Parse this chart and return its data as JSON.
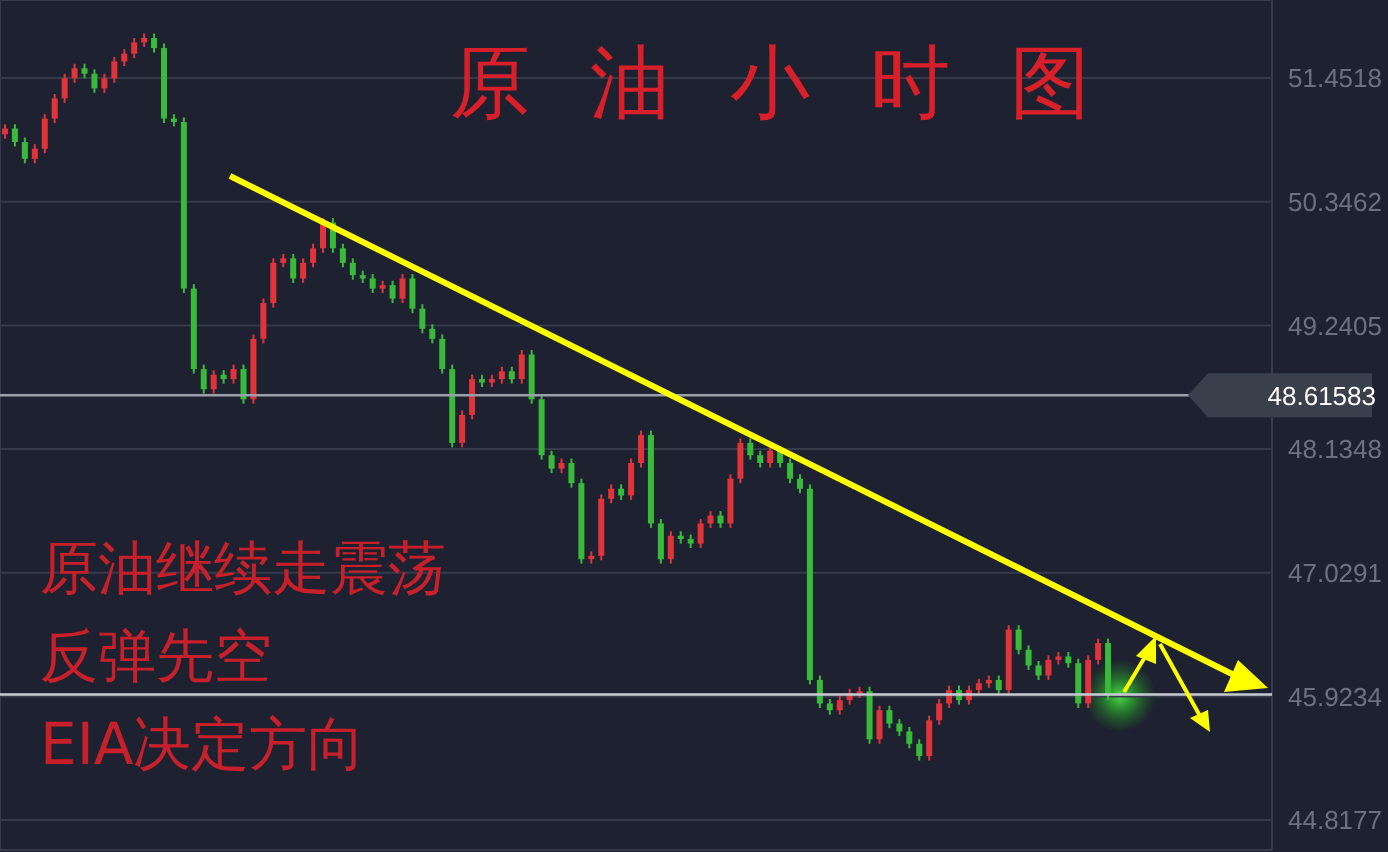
{
  "chart_data": {
    "type": "candlestick",
    "title": "原油小时图",
    "annotations": [
      "原油继续走震荡",
      "反弹先空",
      "EIA决定方向"
    ],
    "categories": [
      null,
      null,
      null,
      null,
      null,
      null,
      null,
      null,
      null,
      null,
      null,
      null,
      null,
      null,
      null,
      null,
      null,
      null,
      null,
      null,
      null,
      null,
      null,
      null,
      null,
      null,
      null,
      null,
      null,
      null,
      null,
      null,
      null,
      null,
      null,
      null,
      null,
      null,
      null,
      null,
      null,
      null,
      null,
      null,
      null,
      null,
      null,
      null,
      null,
      null,
      null,
      null,
      null,
      null,
      null,
      null,
      null,
      null,
      null,
      null,
      null,
      null,
      null,
      null,
      null,
      null,
      null,
      null,
      null,
      null,
      null,
      null,
      null,
      null,
      null,
      null,
      null,
      null,
      null,
      null,
      null,
      null,
      null,
      null,
      null,
      null,
      null,
      null,
      null,
      null,
      null,
      null,
      null,
      null,
      null,
      null,
      null,
      null,
      null,
      null,
      null,
      null,
      null,
      null,
      null,
      null,
      null,
      null,
      null,
      null,
      null,
      null,
      null,
      null,
      null,
      null,
      null,
      null,
      null,
      null,
      null,
      null,
      null,
      null,
      null,
      null,
      null,
      null
    ],
    "colors": [
      "#e0333a",
      "#3aba3a",
      "#3aba3a",
      "#e0333a",
      "#e0333a",
      "#e0333a",
      "#e0333a",
      "#e0333a",
      "#3aba3a",
      "#3aba3a",
      "#e0333a",
      "#e0333a",
      "#e0333a",
      "#e0333a",
      "#e0333a",
      "#3aba3a",
      "#3aba3a",
      "#3aba3a",
      "#3aba3a",
      "#3aba3a",
      "#3aba3a",
      "#e0333a",
      "#3aba3a",
      "#e0333a",
      "#3aba3a",
      "#e0333a",
      "#e0333a",
      "#e0333a",
      "#e0333a",
      "#3aba3a",
      "#e0333a",
      "#e0333a",
      "#e0333a",
      "#3aba3a",
      "#3aba3a",
      "#3aba3a",
      "#3aba3a",
      "#3aba3a",
      "#e0333a",
      "#3aba3a",
      "#e0333a",
      "#3aba3a",
      "#3aba3a",
      "#3aba3a",
      "#3aba3a",
      "#3aba3a",
      "#e0333a",
      "#e0333a",
      "#3aba3a",
      "#e0333a",
      "#e0333a",
      "#3aba3a",
      "#e0333a",
      "#3aba3a",
      "#3aba3a",
      "#3aba3a",
      "#e0333a",
      "#3aba3a",
      "#3aba3a",
      "#e0333a",
      "#e0333a",
      "#e0333a",
      "#3aba3a",
      "#e0333a",
      "#e0333a",
      "#3aba3a",
      "#3aba3a",
      "#e0333a",
      "#3aba3a",
      "#3aba3a",
      "#e0333a",
      "#e0333a",
      "#3aba3a",
      "#e0333a",
      "#e0333a",
      "#3aba3a",
      "#3aba3a",
      "#e0333a",
      "#3aba3a",
      "#3aba3a",
      "#3aba3a",
      "#3aba3a",
      "#3aba3a",
      "#3aba3a",
      "#e0333a",
      "#e0333a",
      "#e0333a",
      "#3aba3a",
      "#e0333a",
      "#3aba3a",
      "#3aba3a",
      "#3aba3a",
      "#3aba3a",
      "#e0333a",
      "#e0333a",
      "#e0333a",
      "#3aba3a",
      "#e0333a",
      "#e0333a",
      "#e0333a",
      "#3aba3a",
      "#e0333a",
      "#3aba3a",
      "#3aba3a",
      "#3aba3a",
      "#e0333a",
      "#e0333a",
      "#3aba3a",
      "#3aba3a",
      "#e0333a",
      "#e0333a",
      "#3aba3a",
      null,
      null,
      null,
      null,
      null,
      null,
      null,
      null,
      null,
      null,
      null,
      null,
      null,
      null,
      null,
      null
    ],
    "ohlc": [
      [
        50.95,
        51.04,
        50.91,
        51.0
      ],
      [
        51.0,
        51.04,
        50.84,
        50.88
      ],
      [
        50.88,
        50.92,
        50.69,
        50.73
      ],
      [
        50.73,
        50.86,
        50.69,
        50.82
      ],
      [
        50.82,
        51.13,
        50.78,
        51.09
      ],
      [
        51.09,
        51.31,
        51.05,
        51.27
      ],
      [
        51.27,
        51.49,
        51.23,
        51.45
      ],
      [
        51.45,
        51.58,
        51.41,
        51.54
      ],
      [
        51.54,
        51.58,
        51.45,
        51.49
      ],
      [
        51.49,
        51.53,
        51.32,
        51.36
      ],
      [
        51.36,
        51.49,
        51.32,
        51.45
      ],
      [
        51.45,
        51.64,
        51.41,
        51.6
      ],
      [
        51.6,
        51.71,
        51.56,
        51.67
      ],
      [
        51.67,
        51.81,
        51.63,
        51.77
      ],
      [
        51.77,
        51.85,
        51.73,
        51.81
      ],
      [
        51.81,
        51.85,
        51.68,
        51.72
      ],
      [
        51.72,
        51.76,
        51.05,
        51.09
      ],
      [
        51.09,
        51.13,
        51.02,
        51.06
      ],
      [
        51.06,
        51.1,
        49.53,
        49.57
      ],
      [
        49.57,
        49.61,
        48.81,
        48.85
      ],
      [
        48.85,
        48.89,
        48.63,
        48.67
      ],
      [
        48.67,
        48.84,
        48.63,
        48.8
      ],
      [
        48.8,
        48.84,
        48.72,
        48.76
      ],
      [
        48.76,
        48.89,
        48.72,
        48.85
      ],
      [
        48.85,
        48.89,
        48.54,
        48.58
      ],
      [
        48.58,
        49.16,
        48.54,
        49.12
      ],
      [
        49.12,
        49.48,
        49.08,
        49.44
      ],
      [
        49.44,
        49.84,
        49.4,
        49.8
      ],
      [
        49.8,
        49.88,
        49.76,
        49.84
      ],
      [
        49.84,
        49.88,
        49.62,
        49.66
      ],
      [
        49.66,
        49.84,
        49.62,
        49.8
      ],
      [
        49.8,
        49.97,
        49.76,
        49.93
      ],
      [
        49.93,
        50.2,
        49.89,
        50.16
      ],
      [
        50.16,
        50.2,
        49.89,
        49.93
      ],
      [
        49.93,
        49.97,
        49.76,
        49.8
      ],
      [
        49.8,
        49.84,
        49.65,
        49.69
      ],
      [
        49.69,
        49.73,
        49.62,
        49.66
      ],
      [
        49.66,
        49.7,
        49.53,
        49.57
      ],
      [
        49.57,
        49.64,
        49.53,
        49.6
      ],
      [
        49.6,
        49.64,
        49.44,
        49.48
      ],
      [
        49.48,
        49.7,
        49.44,
        49.66
      ],
      [
        49.66,
        49.7,
        49.35,
        49.39
      ],
      [
        49.39,
        49.43,
        49.17,
        49.21
      ],
      [
        49.21,
        49.25,
        49.08,
        49.12
      ],
      [
        49.12,
        49.16,
        48.81,
        48.85
      ],
      [
        48.85,
        48.89,
        48.15,
        48.19
      ],
      [
        48.19,
        48.48,
        48.15,
        48.44
      ],
      [
        48.44,
        48.8,
        48.4,
        48.76
      ],
      [
        48.76,
        48.8,
        48.69,
        48.73
      ],
      [
        48.73,
        48.8,
        48.69,
        48.76
      ],
      [
        48.76,
        48.87,
        48.72,
        48.83
      ],
      [
        48.83,
        48.87,
        48.72,
        48.76
      ],
      [
        48.76,
        49.02,
        48.72,
        48.98
      ],
      [
        48.98,
        49.02,
        48.54,
        48.58
      ],
      [
        48.58,
        48.62,
        48.04,
        48.08
      ],
      [
        48.08,
        48.12,
        47.92,
        47.96
      ],
      [
        47.96,
        48.05,
        47.92,
        48.01
      ],
      [
        48.01,
        48.05,
        47.79,
        47.83
      ],
      [
        47.83,
        47.87,
        47.11,
        47.15
      ],
      [
        47.15,
        47.22,
        47.11,
        47.18
      ],
      [
        47.18,
        47.73,
        47.14,
        47.69
      ],
      [
        47.69,
        47.82,
        47.65,
        47.78
      ],
      [
        47.78,
        47.82,
        47.68,
        47.72
      ],
      [
        47.72,
        48.05,
        47.68,
        48.01
      ],
      [
        48.01,
        48.3,
        47.97,
        48.26
      ],
      [
        48.26,
        48.3,
        47.43,
        47.47
      ],
      [
        47.47,
        47.51,
        47.11,
        47.15
      ],
      [
        47.15,
        47.4,
        47.11,
        47.36
      ],
      [
        47.36,
        47.4,
        47.29,
        47.33
      ],
      [
        47.33,
        47.37,
        47.25,
        47.29
      ],
      [
        47.29,
        47.51,
        47.25,
        47.47
      ],
      [
        47.47,
        47.58,
        47.43,
        47.54
      ],
      [
        47.54,
        47.58,
        47.43,
        47.47
      ],
      [
        47.47,
        47.91,
        47.43,
        47.87
      ],
      [
        47.87,
        48.23,
        47.83,
        48.19
      ],
      [
        48.19,
        48.23,
        48.04,
        48.08
      ],
      [
        48.08,
        48.12,
        47.97,
        48.01
      ],
      [
        48.01,
        48.16,
        47.97,
        48.12
      ],
      [
        48.12,
        48.16,
        47.97,
        48.01
      ],
      [
        48.01,
        48.05,
        47.83,
        47.87
      ],
      [
        47.87,
        47.91,
        47.74,
        47.78
      ],
      [
        47.78,
        47.82,
        46.03,
        46.07
      ],
      [
        46.07,
        46.11,
        45.82,
        45.86
      ],
      [
        45.86,
        45.9,
        45.76,
        45.8
      ],
      [
        45.8,
        45.93,
        45.76,
        45.89
      ],
      [
        45.89,
        45.99,
        45.85,
        45.95
      ],
      [
        45.95,
        46.01,
        45.91,
        45.97
      ],
      [
        45.97,
        46.01,
        45.5,
        45.54
      ],
      [
        45.54,
        45.84,
        45.5,
        45.8
      ],
      [
        45.8,
        45.84,
        45.64,
        45.68
      ],
      [
        45.68,
        45.72,
        45.57,
        45.61
      ],
      [
        45.61,
        45.65,
        45.46,
        45.5
      ],
      [
        45.5,
        45.54,
        45.35,
        45.39
      ],
      [
        45.39,
        45.75,
        45.35,
        45.71
      ],
      [
        45.71,
        45.9,
        45.67,
        45.86
      ],
      [
        45.86,
        46.02,
        45.82,
        45.98
      ],
      [
        45.98,
        46.02,
        45.85,
        45.89
      ],
      [
        45.89,
        46.02,
        45.85,
        45.98
      ],
      [
        45.98,
        46.08,
        45.94,
        46.04
      ],
      [
        46.04,
        46.11,
        46.0,
        46.07
      ],
      [
        46.07,
        46.11,
        45.94,
        45.98
      ],
      [
        45.98,
        46.56,
        45.94,
        46.52
      ],
      [
        46.52,
        46.56,
        46.3,
        46.34
      ],
      [
        46.34,
        46.38,
        46.16,
        46.2
      ],
      [
        46.2,
        46.24,
        46.07,
        46.11
      ],
      [
        46.11,
        46.29,
        46.07,
        46.25
      ],
      [
        46.25,
        46.32,
        46.21,
        46.28
      ],
      [
        46.28,
        46.32,
        46.18,
        46.22
      ],
      [
        46.22,
        46.26,
        45.82,
        45.86
      ],
      [
        45.86,
        46.29,
        45.82,
        46.25
      ],
      [
        46.25,
        46.44,
        46.21,
        46.4
      ],
      [
        46.4,
        46.44,
        45.89,
        45.93
      ],
      null,
      null,
      null,
      null,
      null,
      null,
      null,
      null,
      null,
      null,
      null,
      null,
      null,
      null,
      null,
      null
    ],
    "ylim": [
      44.55,
      52.15
    ],
    "yticks": [
      44.8177,
      45.9234,
      47.0291,
      48.1348,
      49.2405,
      50.3462,
      51.4518
    ],
    "ref_lines": [
      {
        "axis": "y",
        "value": 48.61583,
        "label": "48.61583",
        "color": "#9aa0aa"
      },
      {
        "axis": "y",
        "value": 45.94,
        "color": "#c8ccd2"
      }
    ],
    "grid": true,
    "tick_labels": "y"
  }
}
